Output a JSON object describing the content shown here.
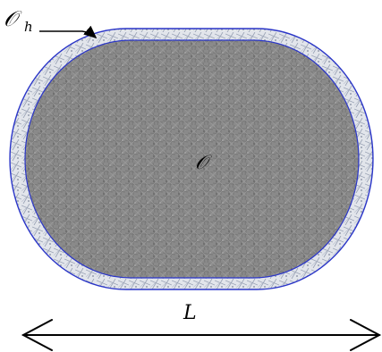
{
  "labels": {
    "boundary_layer": "𝒪",
    "boundary_layer_subscript": "h",
    "domain": "𝒪",
    "length": "L"
  },
  "colors": {
    "outline": "#2a35c8",
    "inner_fill": "#8a8a8a",
    "inner_texture_dark": "#6f6f6f",
    "inner_texture_light": "#a9a9a9",
    "layer_fill": "#dfe3ea",
    "layer_texture": "#8e98ad",
    "arrow": "#000000"
  },
  "icons": {
    "annotation_arrow": "arrow-right-down-icon",
    "dimension_arrow": "double-headed-arrow-icon"
  }
}
